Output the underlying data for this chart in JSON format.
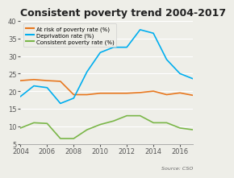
{
  "title": "Consistent poverty trend 2004-2017",
  "source": "Source: CSO",
  "years": [
    2004,
    2005,
    2006,
    2007,
    2008,
    2009,
    2010,
    2011,
    2012,
    2013,
    2014,
    2015,
    2016,
    2017
  ],
  "at_risk": [
    23.0,
    23.3,
    23.0,
    22.8,
    19.0,
    19.0,
    19.4,
    19.4,
    19.4,
    19.6,
    20.0,
    19.0,
    19.5,
    18.8
  ],
  "deprivation": [
    18.5,
    21.5,
    21.0,
    16.5,
    18.0,
    25.5,
    31.0,
    32.5,
    32.5,
    37.5,
    36.5,
    29.0,
    25.0,
    23.5
  ],
  "consistent": [
    9.5,
    11.0,
    10.8,
    6.5,
    6.5,
    9.0,
    10.5,
    11.5,
    13.0,
    13.0,
    11.0,
    11.0,
    9.5,
    9.0
  ],
  "at_risk_color": "#E8771E",
  "deprivation_color": "#00AEEF",
  "consistent_color": "#7AB648",
  "ylim": [
    5,
    40
  ],
  "yticks": [
    5,
    10,
    15,
    20,
    25,
    30,
    35,
    40
  ],
  "xticks": [
    2004,
    2006,
    2008,
    2010,
    2012,
    2014,
    2016
  ],
  "bg_color": "#EEEEE8",
  "grid_color": "#FFFFFF",
  "title_fontsize": 9.0,
  "tick_fontsize": 6.0,
  "legend_fontsize": 5.0,
  "source_fontsize": 4.5,
  "legend_labels": [
    "At risk of poverty rate (%)",
    "Deprivation rate (%)",
    "Consistent poverty rate (%)"
  ]
}
